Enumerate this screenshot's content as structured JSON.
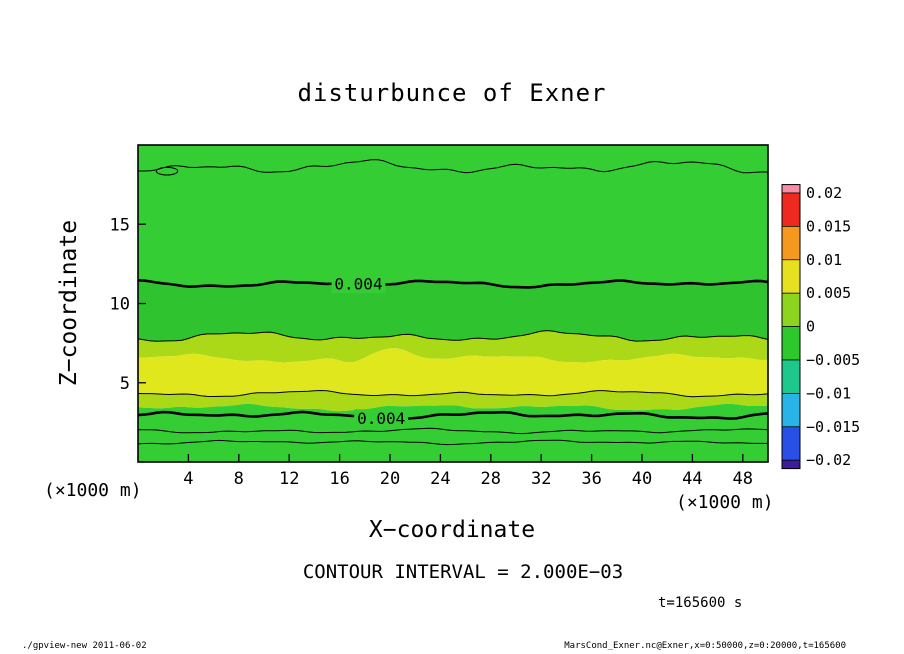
{
  "title": "disturbunce of Exner",
  "axes": {
    "xlabel": "X−coordinate",
    "ylabel": "Z−coordinate",
    "x_unit_left": "(×1000 m)",
    "x_unit_right": "(×1000 m)",
    "x_ticks": [
      4,
      8,
      12,
      16,
      20,
      24,
      28,
      32,
      36,
      40,
      44,
      48
    ],
    "y_ticks": [
      5,
      10,
      15
    ],
    "x_range": [
      0,
      50
    ],
    "z_range": [
      0,
      20
    ]
  },
  "annotations": {
    "contour_interval": "CONTOUR INTERVAL = 2.000E−03",
    "time_label": "t=165600 s"
  },
  "footer": {
    "left": "./gpview-new  2011-06-02",
    "right": "MarsCond_Exner.nc@Exner,x=0:50000,z=0:20000,t=165600"
  },
  "colorbar": {
    "labels": [
      "0.02",
      "0.015",
      "0.01",
      "0.005",
      "0",
      "−0.005",
      "−0.01",
      "−0.015",
      "−0.02"
    ],
    "cell_colors": [
      "#ee2a20",
      "#f5991e",
      "#e6e020",
      "#8cd41e",
      "#2cc82c",
      "#1ec88c",
      "#28b4e6",
      "#2850e6"
    ],
    "cap_top_color": "#fa8ca5",
    "cap_bottom_color": "#3c1e9b"
  },
  "chart_data": {
    "type": "contour",
    "title": "disturbunce of Exner",
    "xlabel": "X−coordinate (×1000 m)",
    "ylabel": "Z−coordinate (×1000 m)",
    "x_range": [
      0,
      50
    ],
    "z_range": [
      0,
      20
    ],
    "x_ticks": [
      4,
      8,
      12,
      16,
      20,
      24,
      28,
      32,
      36,
      40,
      44,
      48
    ],
    "y_ticks": [
      5,
      10,
      15
    ],
    "contour_interval": 0.002,
    "time_seconds": 165600,
    "colorbar_levels": [
      0.02,
      0.015,
      0.01,
      0.005,
      0,
      -0.005,
      -0.01,
      -0.015,
      -0.02
    ],
    "boundaries": [
      {
        "z": 20,
        "flat": true
      },
      {
        "z": 11.25,
        "amp": 0.2,
        "seed": 1,
        "line": "thick",
        "label": "0.004",
        "label_x": 17.5,
        "label_bg": "#34cd34"
      },
      {
        "z": 7.9,
        "amp": 0.3,
        "seed": 2,
        "line": "thin"
      },
      {
        "z": 6.55,
        "amp": 0.25,
        "seed": 3,
        "bumps": [
          {
            "x": 20,
            "h": 0.55,
            "w": 1.6
          },
          {
            "x": 17,
            "h": -0.45,
            "w": 1.2
          }
        ]
      },
      {
        "z": 4.3,
        "amp": 0.18,
        "seed": 4,
        "line": "thin"
      },
      {
        "z": 3.45,
        "amp": 0.2,
        "seed": 5
      },
      {
        "z": 0,
        "flat": true
      }
    ],
    "band_colors": [
      "#34cd34",
      "#2fc42f",
      "#abd918",
      "#e0e71c",
      "#abd918",
      "#34cd34"
    ],
    "extra_lines": [
      {
        "z": 18.6,
        "amp": 0.38,
        "seed": 6,
        "line": "thin"
      },
      {
        "z": 2.95,
        "amp": 0.22,
        "seed": 7,
        "line": "thick",
        "label": "0.004",
        "label_x": 19.3,
        "label_bg": "#34cd34"
      },
      {
        "z": 1.95,
        "amp": 0.14,
        "seed": 8,
        "line": "thin"
      },
      {
        "z": 1.25,
        "amp": 0.12,
        "seed": 9,
        "line": "thin"
      }
    ],
    "closed_contours": [
      {
        "x": 2.3,
        "z": 18.35,
        "rx": 0.85,
        "rz": 0.24
      }
    ]
  }
}
